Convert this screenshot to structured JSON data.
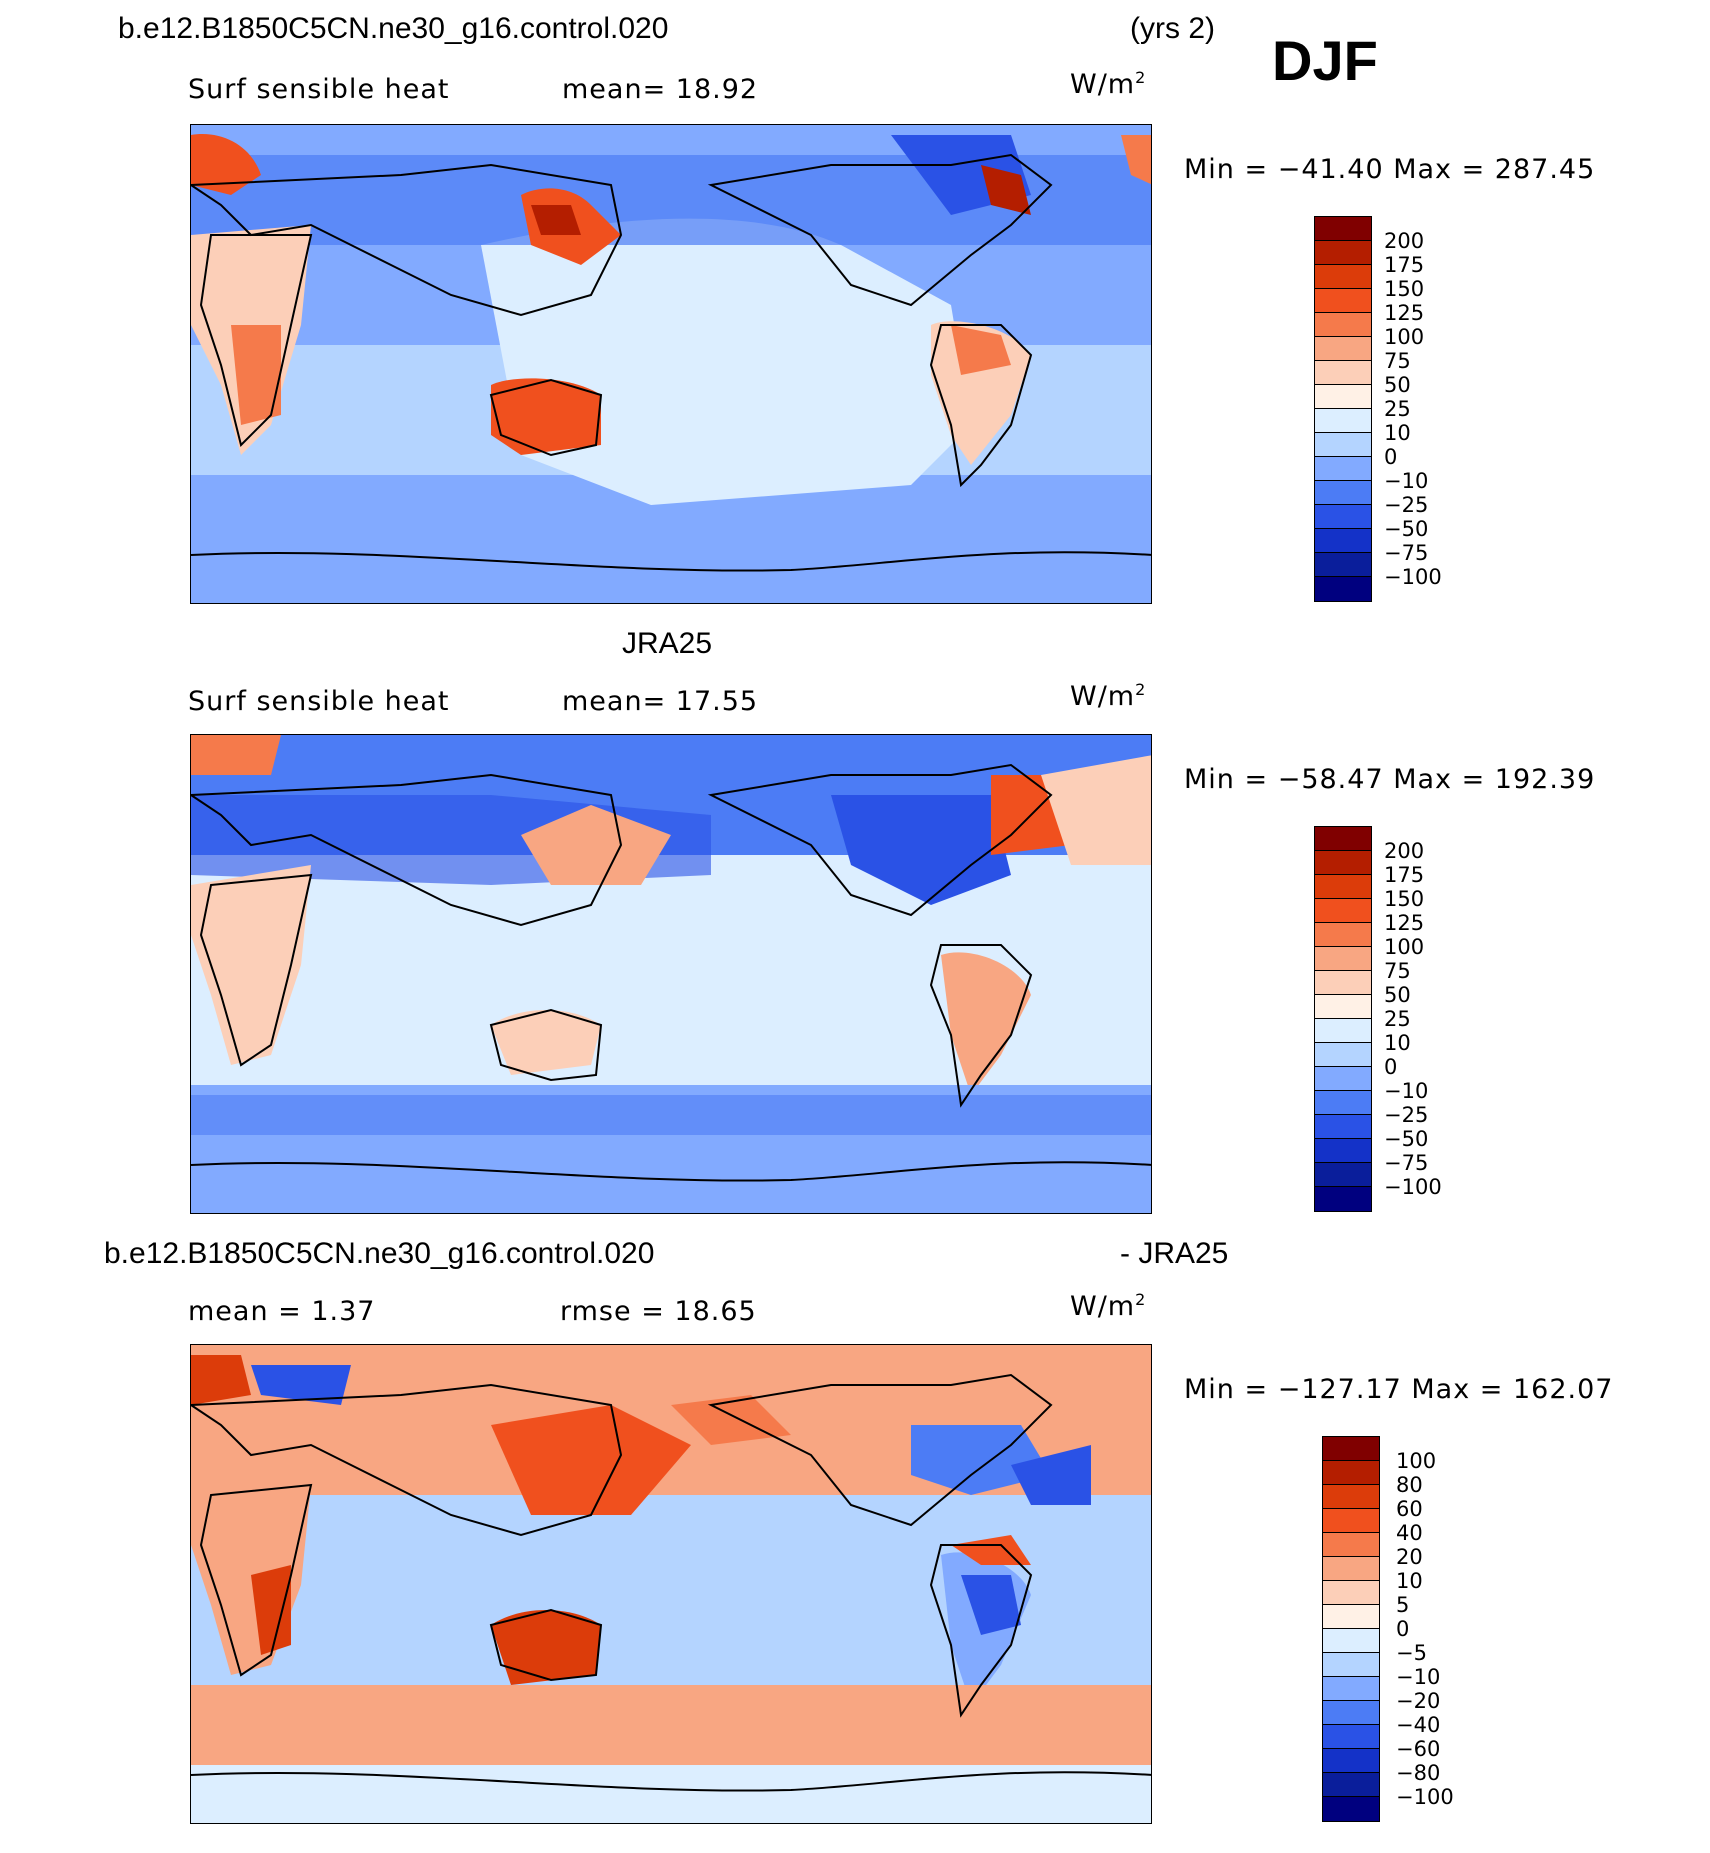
{
  "header": {
    "case_name": "b.e12.B1850C5CN.ne30_g16.control.020",
    "years": "(yrs 2)",
    "season": "DJF"
  },
  "panels": [
    {
      "title": "",
      "variable": "Surf sensible heat",
      "stat1": "mean=   18.92",
      "stat2": "",
      "units_base": "W/m",
      "units_exp": "2",
      "minmax": "Min = −41.40  Max = 287.45",
      "levels": [
        "200",
        "175",
        "150",
        "125",
        "100",
        "75",
        "50",
        "25",
        "10",
        "0",
        "−10",
        "−25",
        "−50",
        "−75",
        "−100"
      ],
      "colors": [
        "#800000",
        "#b41e00",
        "#dc3c0a",
        "#f0501e",
        "#f57a4b",
        "#f8a682",
        "#fccfb8",
        "#fff1e6",
        "#dceeff",
        "#b4d4ff",
        "#82aaff",
        "#4c7cf5",
        "#2a52e6",
        "#1432c8",
        "#0a1e9b",
        "#00007f"
      ]
    },
    {
      "title": "JRA25",
      "variable": "Surf sensible heat",
      "stat1": "mean=   17.55",
      "stat2": "",
      "units_base": "W/m",
      "units_exp": "2",
      "minmax": "Min = −58.47  Max = 192.39",
      "levels": [
        "200",
        "175",
        "150",
        "125",
        "100",
        "75",
        "50",
        "25",
        "10",
        "0",
        "−10",
        "−25",
        "−50",
        "−75",
        "−100"
      ],
      "colors": [
        "#800000",
        "#b41e00",
        "#dc3c0a",
        "#f0501e",
        "#f57a4b",
        "#f8a682",
        "#fccfb8",
        "#fff1e6",
        "#dceeff",
        "#b4d4ff",
        "#82aaff",
        "#4c7cf5",
        "#2a52e6",
        "#1432c8",
        "#0a1e9b",
        "#00007f"
      ]
    },
    {
      "title": "b.e12.B1850C5CN.ne30_g16.control.020",
      "title_right": "- JRA25",
      "variable": "",
      "stat1": "mean =     1.37",
      "stat2": "rmse =    18.65",
      "units_base": "W/m",
      "units_exp": "2",
      "minmax": "Min = −127.17  Max = 162.07",
      "levels": [
        "100",
        "80",
        "60",
        "40",
        "20",
        "10",
        "5",
        "0",
        "−5",
        "−10",
        "−20",
        "−40",
        "−60",
        "−80",
        "−100"
      ],
      "colors": [
        "#800000",
        "#b41e00",
        "#dc3c0a",
        "#f0501e",
        "#f57a4b",
        "#f8a682",
        "#fccfb8",
        "#fff1e6",
        "#dceeff",
        "#b4d4ff",
        "#82aaff",
        "#4c7cf5",
        "#2a52e6",
        "#1432c8",
        "#0a1e9b",
        "#00007f"
      ]
    }
  ]
}
